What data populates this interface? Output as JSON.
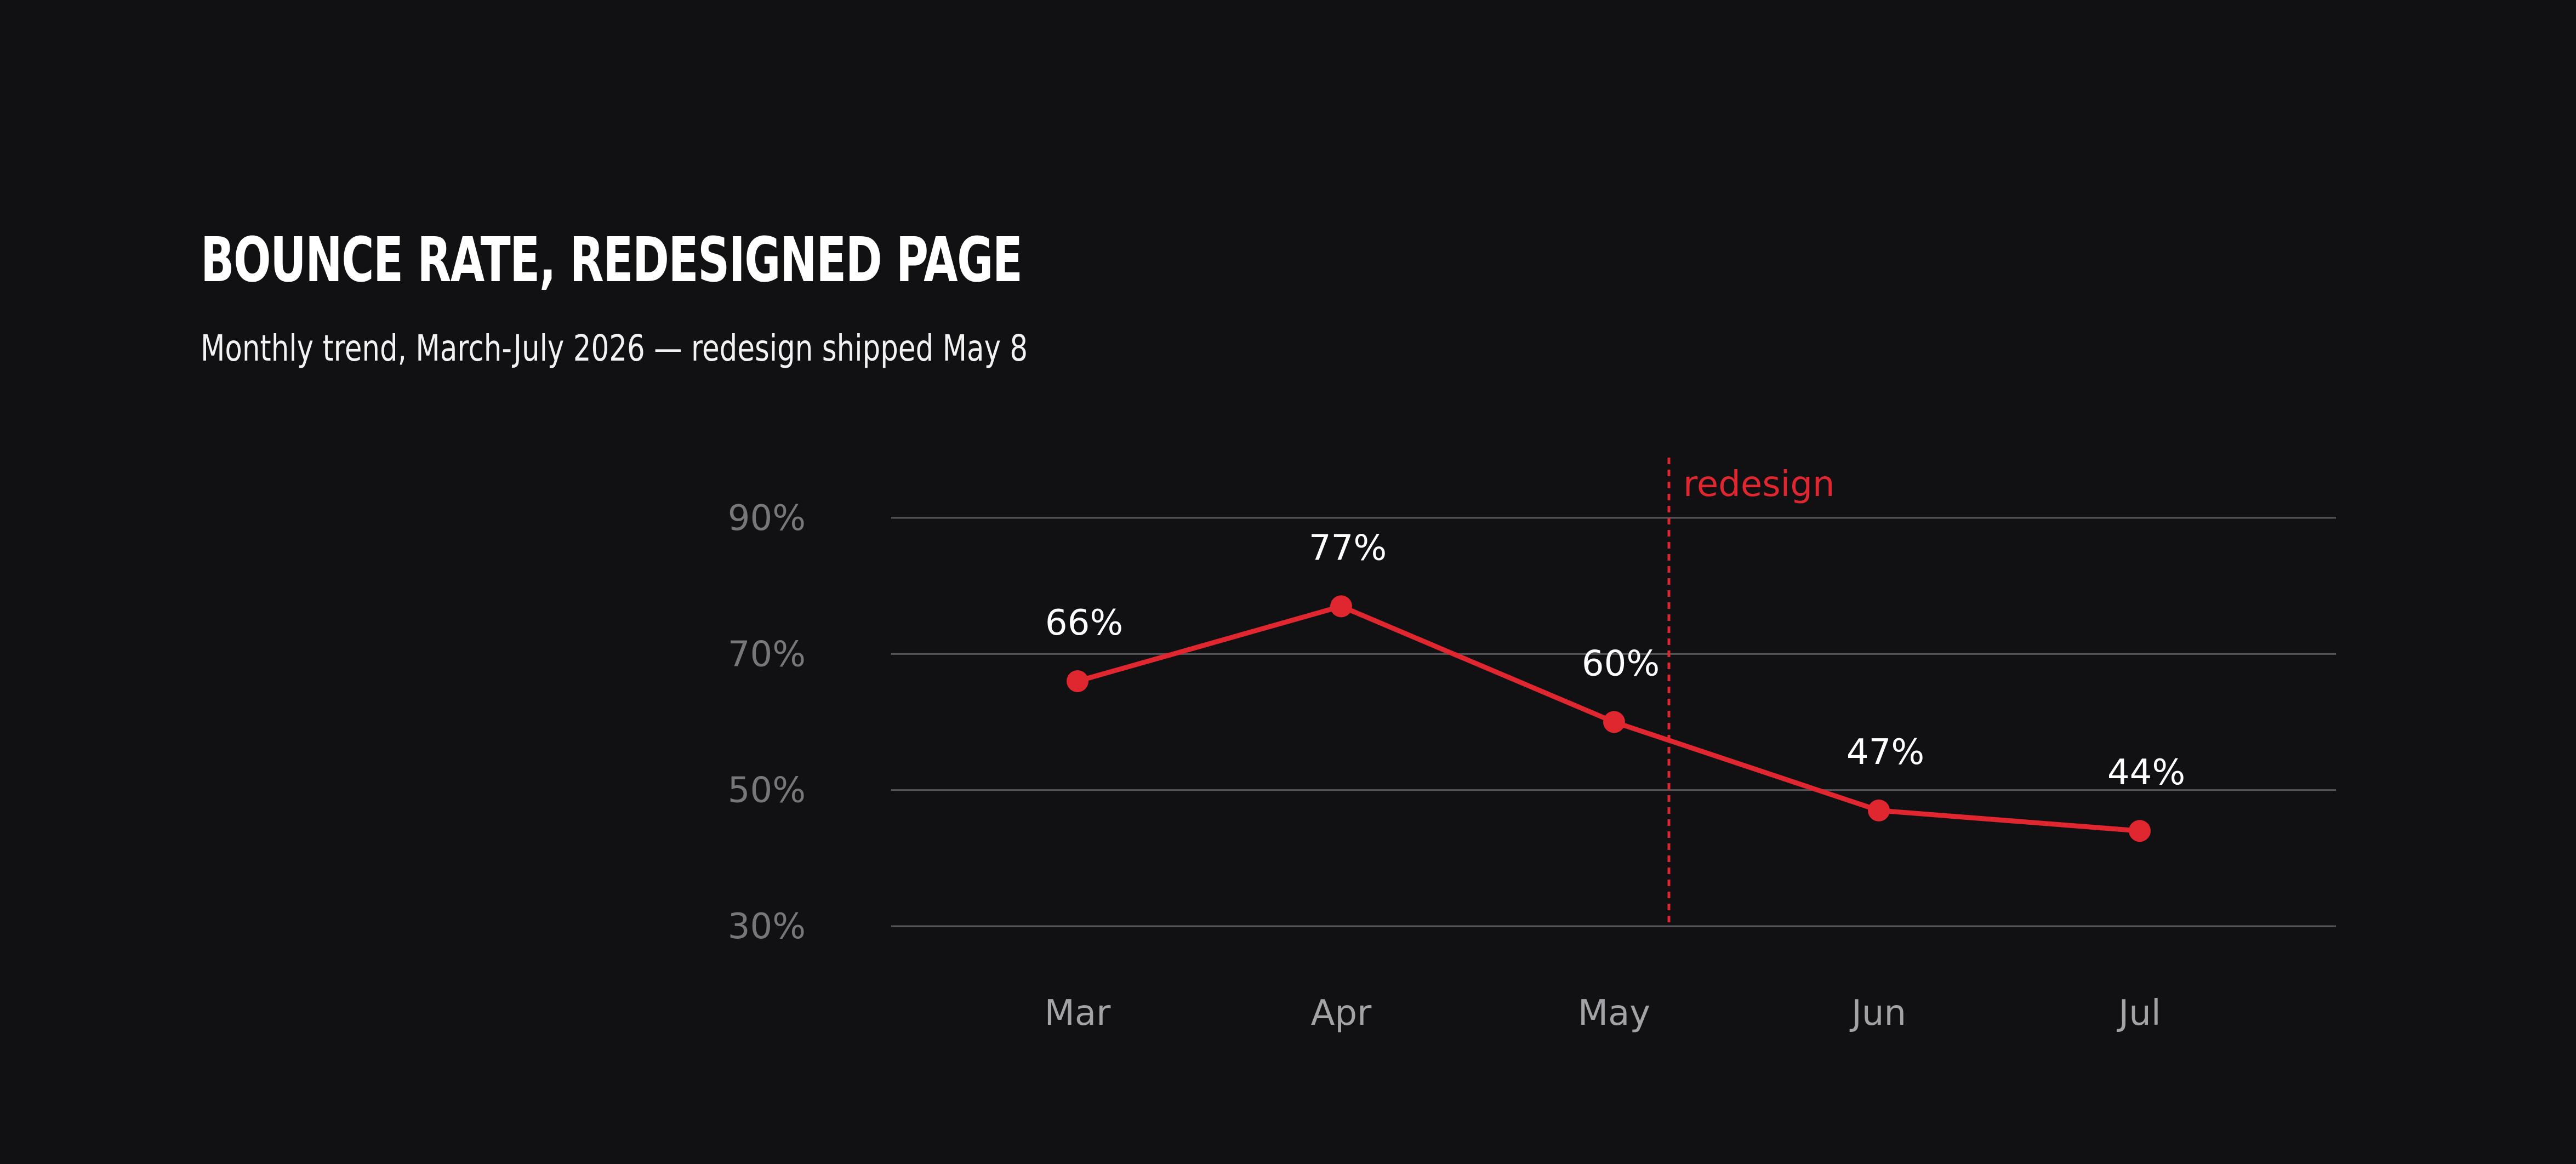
{
  "colors": {
    "background": "#111013",
    "series": "#e0262f",
    "grid": "#56555a",
    "tick_text": "#77767b",
    "category_text": "#a3a2a7",
    "label_text": "#ffffff"
  },
  "chart_data": {
    "type": "line",
    "title": "BOUNCE RATE, REDESIGNED PAGE",
    "subtitle": "Monthly trend, March-July 2026 — redesign shipped May 8",
    "categories": [
      "Mar",
      "Apr",
      "May",
      "Jun",
      "Jul"
    ],
    "series": [
      {
        "values": [
          66,
          77,
          60,
          47,
          44
        ],
        "labels": [
          "66%",
          "77%",
          "60%",
          "47%",
          "44%"
        ]
      }
    ],
    "y_ticks": [
      {
        "value": 90,
        "label": "90%"
      },
      {
        "value": 70,
        "label": "70%"
      },
      {
        "value": 50,
        "label": "50%"
      },
      {
        "value": 30,
        "label": "30%"
      }
    ],
    "ylim": [
      30,
      90
    ],
    "grid": true,
    "annotation": {
      "label": "redesign",
      "position": "May 8",
      "style": "dashed"
    }
  }
}
